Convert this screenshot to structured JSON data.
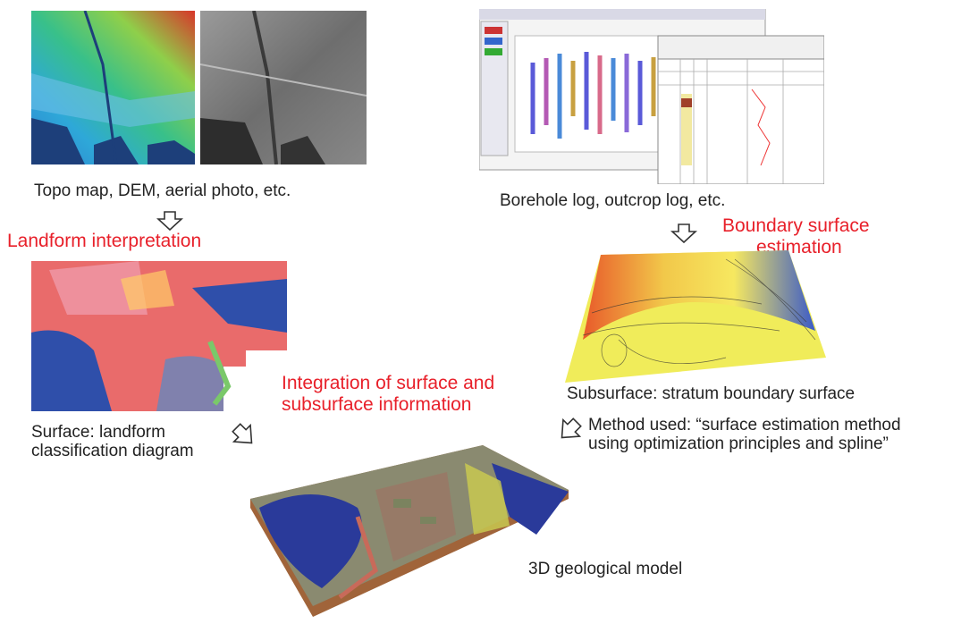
{
  "captions": {
    "topo": "Topo map, DEM, aerial photo, etc.",
    "borehole": "Borehole log, outcrop log, etc.",
    "surface_line1": "Surface: landform",
    "surface_line2": "classification diagram",
    "subsurface": "Subsurface: stratum boundary surface",
    "method_line1": "Method used: “surface estimation method",
    "method_line2": "using optimization principles and spline”",
    "model": "3D geological model"
  },
  "steps": {
    "landform": "Landform interpretation",
    "boundary_line1": "Boundary surface",
    "boundary_line2": "estimation",
    "integration_line1": "Integration of surface and",
    "integration_line2": "subsurface information"
  },
  "colors": {
    "step_text": "#e8202a",
    "arrow": "#333333"
  }
}
